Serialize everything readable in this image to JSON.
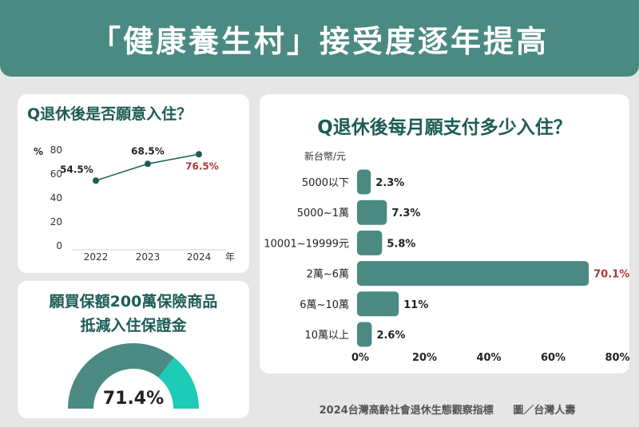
{
  "banner": {
    "title": "「健康養生村」接受度逐年提高"
  },
  "colors": {
    "teal": "#4a8a82",
    "dark": "#1c5c55",
    "red": "#b0363a",
    "mint": "#1dcbb6"
  },
  "chart_data": [
    {
      "type": "line",
      "title": "Q退休後是否願意入住？",
      "ylabel": "%",
      "xlabel": "年",
      "ylim": [
        0,
        80
      ],
      "yticks": [
        0,
        20,
        40,
        60,
        80
      ],
      "x": [
        "2022",
        "2023",
        "2024"
      ],
      "values": [
        54.5,
        68.5,
        76.5
      ],
      "data_labels": [
        "54.5%",
        "68.5%",
        "76.5%"
      ]
    },
    {
      "type": "pie",
      "title_lines": [
        "願買保額200萬保險商品",
        "抵減入住保證金"
      ],
      "value": 71.4,
      "label": "71.4%"
    },
    {
      "type": "bar",
      "title": "Q退休後每月願支付多少入住？",
      "ylabel": "新台幣/元",
      "categories": [
        "5000以下",
        "5000~1萬",
        "10001~19999元",
        "2萬~6萬",
        "6萬~10萬",
        "10萬以上"
      ],
      "values": [
        2.3,
        7.3,
        5.8,
        70.1,
        11,
        2.6
      ],
      "data_labels": [
        "2.3%",
        "7.3%",
        "5.8%",
        "70.1%",
        "11%",
        "2.6%"
      ],
      "xlim": [
        0,
        80
      ],
      "xticks": [
        "0%",
        "20%",
        "40%",
        "60%",
        "80%"
      ],
      "highlight_index": 3
    }
  ],
  "footer": {
    "source": "2024台灣高齡社會退休生態觀察指標",
    "credit": "圖／台灣人壽"
  }
}
